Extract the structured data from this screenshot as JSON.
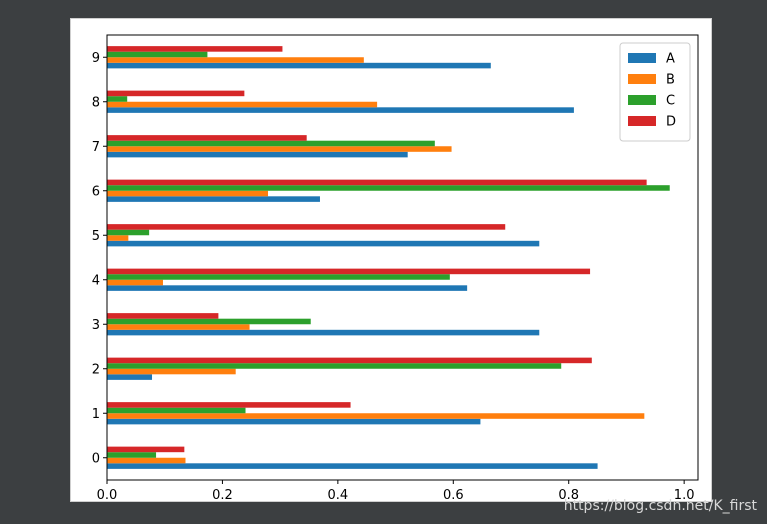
{
  "chart_data": {
    "type": "bar",
    "orientation": "horizontal",
    "categories": [
      "0",
      "1",
      "2",
      "3",
      "4",
      "5",
      "6",
      "7",
      "8",
      "9"
    ],
    "series": [
      {
        "name": "A",
        "color": "#1f77b4",
        "values": [
          0.85,
          0.647,
          0.078,
          0.749,
          0.624,
          0.749,
          0.369,
          0.521,
          0.809,
          0.665
        ]
      },
      {
        "name": "B",
        "color": "#ff7f0e",
        "values": [
          0.136,
          0.931,
          0.223,
          0.247,
          0.097,
          0.037,
          0.279,
          0.597,
          0.468,
          0.445
        ]
      },
      {
        "name": "C",
        "color": "#2ca02c",
        "values": [
          0.085,
          0.24,
          0.787,
          0.353,
          0.594,
          0.073,
          0.975,
          0.568,
          0.035,
          0.174
        ]
      },
      {
        "name": "D",
        "color": "#d62728",
        "values": [
          0.134,
          0.422,
          0.84,
          0.193,
          0.837,
          0.69,
          0.935,
          0.346,
          0.238,
          0.304
        ]
      }
    ],
    "xlim": [
      0,
      1.024
    ],
    "xticks": [
      "0.0",
      "0.2",
      "0.4",
      "0.6",
      "0.8",
      "1.0"
    ],
    "xtick_values": [
      0,
      0.2,
      0.4,
      0.6,
      0.8,
      1.0
    ],
    "legend_position": "upper right",
    "title": "",
    "xlabel": "",
    "ylabel": ""
  },
  "watermark": "https://blog.csdn.net/K_first"
}
